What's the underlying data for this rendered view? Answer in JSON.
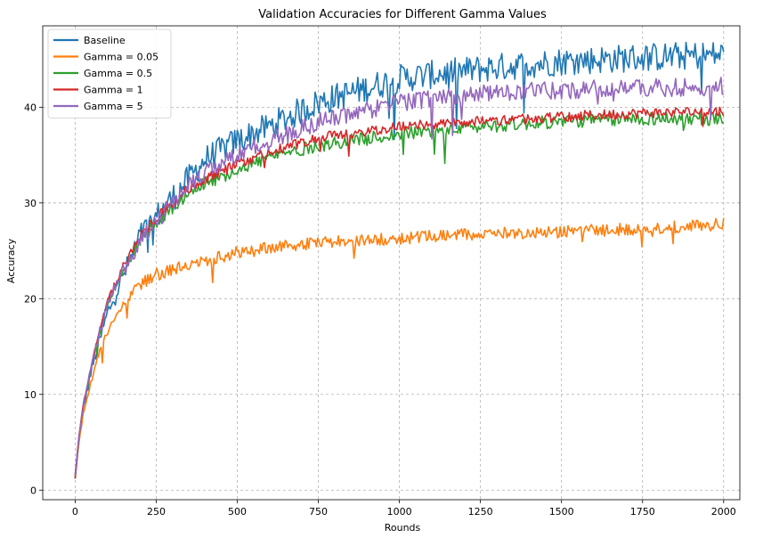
{
  "chart_data": {
    "type": "line",
    "title": "Validation Accuracies for Different Gamma Values",
    "xlabel": "Rounds",
    "ylabel": "Accuracy",
    "xlim": [
      -100,
      2050
    ],
    "ylim": [
      -1.0,
      48.5
    ],
    "xticks": [
      0,
      250,
      500,
      750,
      1000,
      1250,
      1500,
      1750,
      2000
    ],
    "yticks": [
      0,
      10,
      20,
      30,
      40
    ],
    "grid": true,
    "legend_position": "top-left",
    "x": [
      0,
      10,
      25,
      50,
      75,
      100,
      150,
      200,
      250,
      300,
      350,
      400,
      500,
      600,
      750,
      1000,
      1250,
      1500,
      1750,
      2000
    ],
    "series": [
      {
        "name": "Baseline",
        "color": "#1f77b4",
        "values": [
          1.5,
          5.0,
          8.5,
          12.5,
          15.5,
          18.5,
          22.5,
          26.5,
          28.5,
          30.5,
          32.5,
          34.5,
          36.5,
          38.0,
          40.5,
          43.0,
          44.0,
          44.8,
          45.2,
          45.5
        ]
      },
      {
        "name": "Gamma = 0.05",
        "color": "#ff7f0e",
        "values": [
          1.2,
          4.5,
          8.0,
          11.5,
          14.5,
          16.5,
          19.5,
          21.5,
          22.5,
          23.0,
          23.5,
          24.0,
          24.8,
          25.3,
          25.8,
          26.3,
          26.8,
          27.0,
          27.3,
          27.8
        ]
      },
      {
        "name": "Gamma = 0.5",
        "color": "#2ca02c",
        "values": [
          1.3,
          5.0,
          8.8,
          12.8,
          16.5,
          19.5,
          23.0,
          26.0,
          28.0,
          29.5,
          31.0,
          32.0,
          33.5,
          34.8,
          36.0,
          37.2,
          38.0,
          38.5,
          38.8,
          38.8
        ]
      },
      {
        "name": "Gamma = 1",
        "color": "#d62728",
        "values": [
          1.2,
          5.2,
          9.0,
          13.0,
          16.5,
          19.8,
          23.5,
          26.5,
          28.5,
          30.0,
          31.5,
          32.5,
          34.0,
          35.3,
          36.8,
          38.0,
          38.5,
          39.0,
          39.4,
          39.6
        ]
      },
      {
        "name": "Gamma = 5",
        "color": "#9467bd",
        "values": [
          1.4,
          5.0,
          8.8,
          12.8,
          16.5,
          19.5,
          23.0,
          26.0,
          28.0,
          30.0,
          31.8,
          33.0,
          35.0,
          36.5,
          38.5,
          40.5,
          41.5,
          41.8,
          42.0,
          42.2
        ]
      }
    ]
  }
}
